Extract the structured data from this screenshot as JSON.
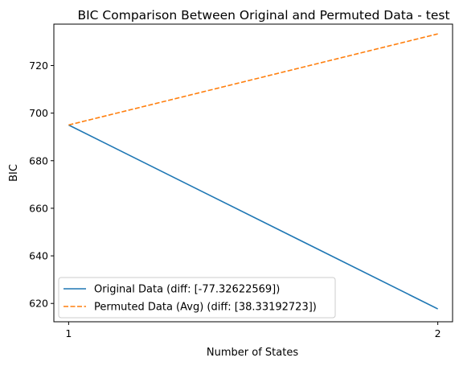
{
  "chart_data": {
    "type": "line",
    "title": "BIC Comparison Between Original and Permuted Data - test",
    "xlabel": "Number of States",
    "ylabel": "BIC",
    "x": [
      1,
      2
    ],
    "x_ticks": [
      "1",
      "2"
    ],
    "y_ticks": [
      620,
      640,
      660,
      680,
      700,
      720
    ],
    "xlim": [
      0.96,
      2.04
    ],
    "ylim": [
      612.3,
      737.4
    ],
    "grid": false,
    "legend_position": "lower-left",
    "series": [
      {
        "name": "Original Data (diff: [-77.32622569])",
        "values": [
          695.0,
          617.7
        ],
        "color": "#1f77b4",
        "style": "solid"
      },
      {
        "name": "Permuted Data (Avg) (diff: [38.33192723])",
        "values": [
          695.0,
          733.3
        ],
        "color": "#ff7f0e",
        "style": "dashed"
      }
    ]
  }
}
